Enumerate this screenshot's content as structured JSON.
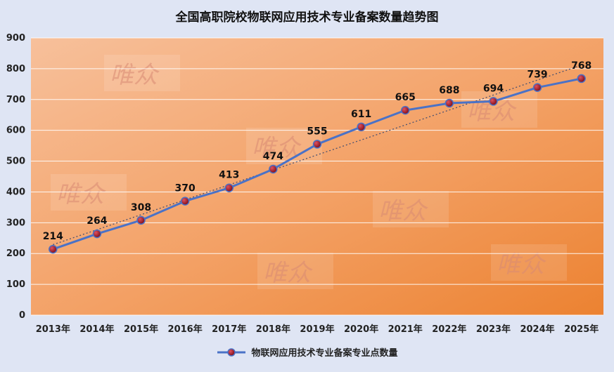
{
  "chart_data": {
    "type": "line",
    "title": "全国高职院校物联网应用技术专业备案数量趋势图",
    "xlabel": "",
    "ylabel": "",
    "categories": [
      "2013年",
      "2014年",
      "2015年",
      "2016年",
      "2017年",
      "2018年",
      "2019年",
      "2020年",
      "2021年",
      "2022年",
      "2023年",
      "2024年",
      "2025年"
    ],
    "series": [
      {
        "name": "物联网应用技术专业备案专业点数量",
        "values": [
          214,
          264,
          308,
          370,
          413,
          474,
          555,
          611,
          665,
          688,
          694,
          739,
          768
        ],
        "color": "#4a72c7",
        "marker_color": "#a01c2c"
      }
    ],
    "ylim": [
      0,
      900
    ],
    "yticks": [
      0,
      100,
      200,
      300,
      400,
      500,
      600,
      700,
      800,
      900
    ],
    "grid": true,
    "trendline": "linear dotted",
    "legend_position": "bottom",
    "watermark": "唯众"
  }
}
